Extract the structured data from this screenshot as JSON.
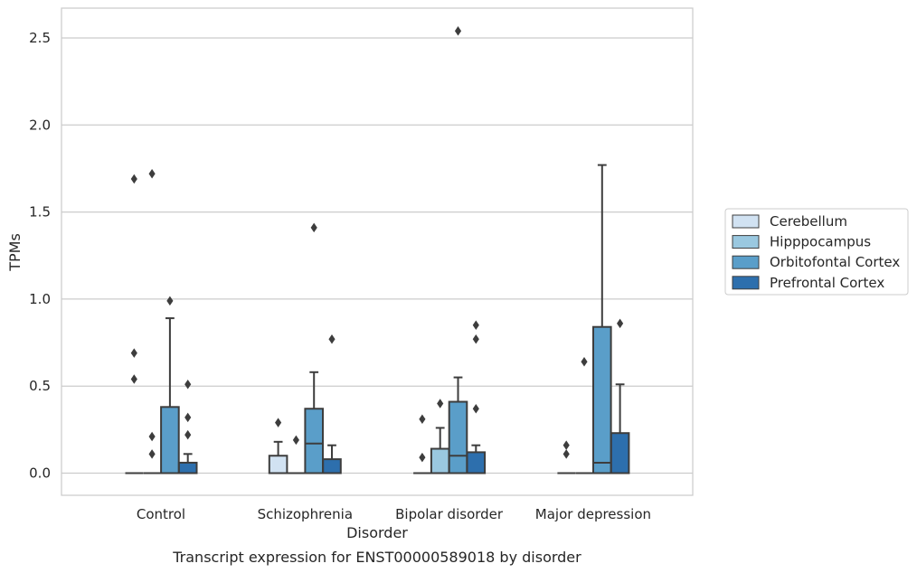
{
  "chart_data": {
    "type": "box",
    "title": "Transcript expression for ENST00000589018 by disorder",
    "xlabel": "Disorder",
    "ylabel": "TPMs",
    "ylim": [
      -0.12,
      2.67
    ],
    "yticks": [
      "0.0",
      "0.5",
      "1.0",
      "1.5",
      "2.0",
      "2.5"
    ],
    "grid": true,
    "legend_position": "right",
    "categories": [
      "Control",
      "Schizophrenia",
      "Bipolar disorder",
      "Major depression"
    ],
    "series": [
      {
        "name": "Cerebellum",
        "color": "#d1e2f2",
        "boxes": [
          {
            "whislo": 0,
            "q1": 0,
            "med": 0,
            "q3": 0,
            "whishi": 0,
            "fliers": [
              1.69,
              0.69,
              0.54
            ]
          },
          {
            "whislo": 0,
            "q1": 0,
            "med": 0,
            "q3": 0.1,
            "whishi": 0.18,
            "fliers": [
              0.29
            ]
          },
          {
            "whislo": 0,
            "q1": 0,
            "med": 0,
            "q3": 0,
            "whishi": 0,
            "fliers": [
              0.31,
              0.09
            ]
          },
          {
            "whislo": 0,
            "q1": 0,
            "med": 0,
            "q3": 0,
            "whishi": 0,
            "fliers": [
              0.16,
              0.11
            ]
          }
        ]
      },
      {
        "name": "Hipppocampus",
        "color": "#9ac8e0",
        "boxes": [
          {
            "whislo": 0,
            "q1": 0,
            "med": 0,
            "q3": 0,
            "whishi": 0,
            "fliers": [
              1.72,
              0.21,
              0.11
            ]
          },
          {
            "whislo": 0,
            "q1": 0,
            "med": 0,
            "q3": 0,
            "whishi": 0,
            "fliers": [
              0.19
            ]
          },
          {
            "whislo": 0,
            "q1": 0,
            "med": 0,
            "q3": 0.14,
            "whishi": 0.26,
            "fliers": [
              0.4
            ]
          },
          {
            "whislo": 0,
            "q1": 0,
            "med": 0,
            "q3": 0,
            "whishi": 0,
            "fliers": [
              0.64
            ]
          }
        ]
      },
      {
        "name": "Orbitofontal Cortex",
        "color": "#5a9ec9",
        "boxes": [
          {
            "whislo": 0,
            "q1": 0,
            "med": 0,
            "q3": 0.38,
            "whishi": 0.89,
            "fliers": [
              0.99
            ]
          },
          {
            "whislo": 0,
            "q1": 0,
            "med": 0.17,
            "q3": 0.37,
            "whishi": 0.58,
            "fliers": [
              1.41
            ]
          },
          {
            "whislo": 0,
            "q1": 0,
            "med": 0.1,
            "q3": 0.41,
            "whishi": 0.55,
            "fliers": [
              2.54
            ]
          },
          {
            "whislo": 0,
            "q1": 0,
            "med": 0.06,
            "q3": 0.84,
            "whishi": 1.77,
            "fliers": []
          }
        ]
      },
      {
        "name": "Prefrontal Cortex",
        "color": "#2d6fad",
        "boxes": [
          {
            "whislo": 0,
            "q1": 0,
            "med": 0,
            "q3": 0.06,
            "whishi": 0.11,
            "fliers": [
              0.51,
              0.32,
              0.22
            ]
          },
          {
            "whislo": 0,
            "q1": 0,
            "med": 0,
            "q3": 0.08,
            "whishi": 0.16,
            "fliers": [
              0.77
            ]
          },
          {
            "whislo": 0,
            "q1": 0,
            "med": 0,
            "q3": 0.12,
            "whishi": 0.16,
            "fliers": [
              0.85,
              0.77,
              0.37
            ]
          },
          {
            "whislo": 0,
            "q1": 0,
            "med": 0,
            "q3": 0.23,
            "whishi": 0.51,
            "fliers": [
              0.86
            ]
          }
        ]
      }
    ]
  }
}
